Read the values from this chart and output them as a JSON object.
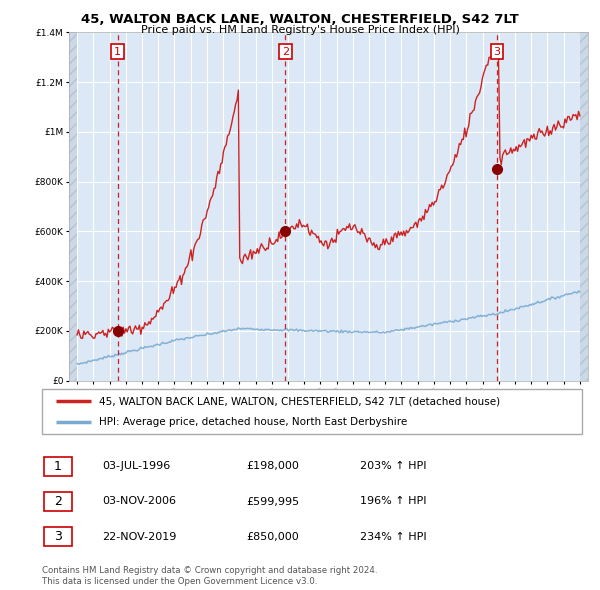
{
  "title": "45, WALTON BACK LANE, WALTON, CHESTERFIELD, S42 7LT",
  "subtitle": "Price paid vs. HM Land Registry's House Price Index (HPI)",
  "legend_line1": "45, WALTON BACK LANE, WALTON, CHESTERFIELD, S42 7LT (detached house)",
  "legend_line2": "HPI: Average price, detached house, North East Derbyshire",
  "footer1": "Contains HM Land Registry data © Crown copyright and database right 2024.",
  "footer2": "This data is licensed under the Open Government Licence v3.0.",
  "sales": [
    {
      "num": 1,
      "date": "03-JUL-1996",
      "price": 198000,
      "hpi_pct": "203% ↑ HPI",
      "x": 1996.5
    },
    {
      "num": 2,
      "date": "03-NOV-2006",
      "price": 599995,
      "hpi_pct": "196% ↑ HPI",
      "x": 2006.83
    },
    {
      "num": 3,
      "date": "22-NOV-2019",
      "price": 850000,
      "hpi_pct": "234% ↑ HPI",
      "x": 2019.9
    }
  ],
  "hpi_color": "#7aaad0",
  "price_color": "#cc2222",
  "sale_dot_color": "#880000",
  "dashed_line_color": "#cc2222",
  "background_color": "#dce8f5",
  "grid_color": "#ffffff",
  "ylim": [
    0,
    1400000
  ],
  "xlim_start": 1993.5,
  "xlim_end": 2025.5,
  "hatch_xleft_end": 1994.0,
  "hatch_xright_start": 2025.0
}
